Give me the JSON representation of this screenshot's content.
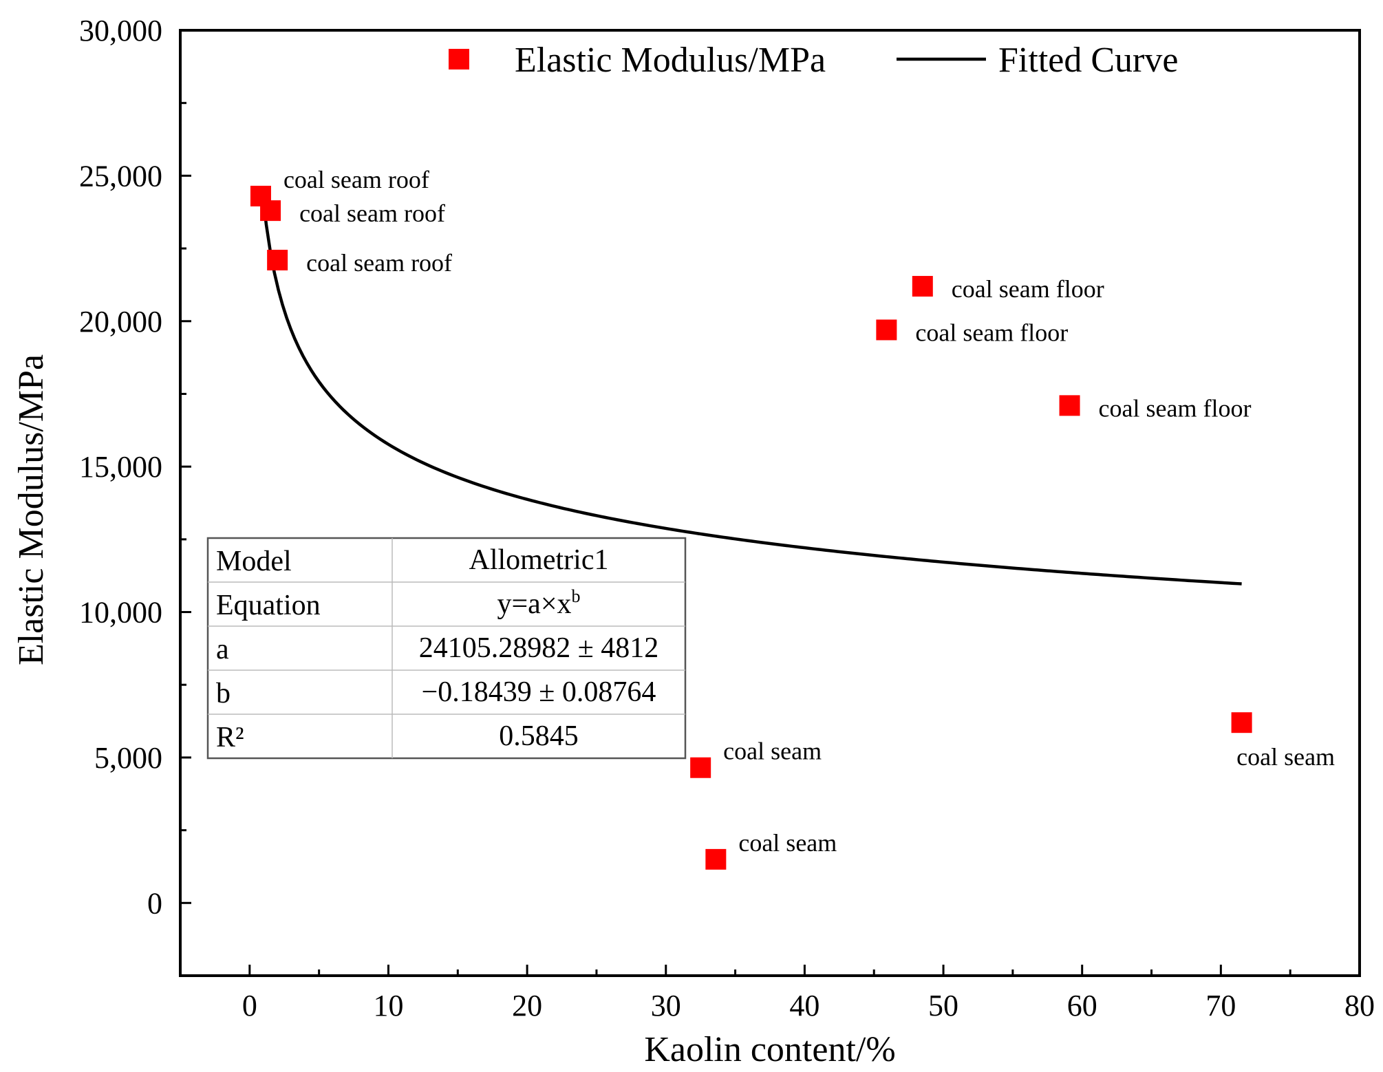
{
  "chart_data": {
    "type": "scatter",
    "title": "",
    "xlabel": "Kaolin content/%",
    "ylabel": "Elastic Modulus/MPa",
    "xlim": [
      -5,
      80
    ],
    "ylim": [
      -2500,
      30000
    ],
    "x_ticks": [
      0,
      10,
      20,
      30,
      40,
      50,
      60,
      70,
      80
    ],
    "x_tick_labels": [
      "0",
      "10",
      "20",
      "30",
      "40",
      "50",
      "60",
      "70",
      "80"
    ],
    "y_ticks": [
      0,
      5000,
      10000,
      15000,
      20000,
      25000,
      30000
    ],
    "y_tick_labels": [
      "0",
      "5,000",
      "10,000",
      "15,000",
      "20,000",
      "25,000",
      "30,000"
    ],
    "grid": false,
    "legend_position": "top",
    "legend": [
      {
        "label": "Elastic Modulus/MPa",
        "kind": "marker"
      },
      {
        "label": "Fitted Curve",
        "kind": "line"
      }
    ],
    "series": [
      {
        "name": "Elastic Modulus/MPa",
        "type": "scatter",
        "color": "#ff0000",
        "points": [
          {
            "x": 0.8,
            "y": 24300,
            "label": "coal seam roof",
            "label_pos": "above-right"
          },
          {
            "x": 1.5,
            "y": 23800,
            "label": "coal seam roof",
            "label_pos": "right"
          },
          {
            "x": 2.0,
            "y": 22100,
            "label": "coal seam roof",
            "label_pos": "right"
          },
          {
            "x": 48.5,
            "y": 21200,
            "label": "coal seam floor",
            "label_pos": "right"
          },
          {
            "x": 45.9,
            "y": 19700,
            "label": "coal seam floor",
            "label_pos": "right"
          },
          {
            "x": 59.1,
            "y": 17100,
            "label": "coal seam floor",
            "label_pos": "right"
          },
          {
            "x": 32.5,
            "y": 4650,
            "label": "coal seam",
            "label_pos": "above-right"
          },
          {
            "x": 33.6,
            "y": 1500,
            "label": "coal seam",
            "label_pos": "above-right"
          },
          {
            "x": 71.5,
            "y": 6200,
            "label": "coal seam",
            "label_pos": "below"
          }
        ]
      },
      {
        "name": "Fitted Curve",
        "type": "line",
        "color": "#000000",
        "model": "allometric",
        "a": 24105.28982,
        "b": -0.18439,
        "x_range": [
          0.9,
          71.5
        ]
      }
    ],
    "fit_table": {
      "rows": [
        {
          "key": "Model",
          "value": "Allometric1"
        },
        {
          "key": "Equation",
          "value": "y=a×x",
          "sup": "b"
        },
        {
          "key": "a",
          "value": "24105.28982 ± 4812"
        },
        {
          "key": "b",
          "value": "−0.18439 ± 0.08764"
        },
        {
          "key": "R²",
          "value": "0.5845"
        }
      ]
    }
  }
}
